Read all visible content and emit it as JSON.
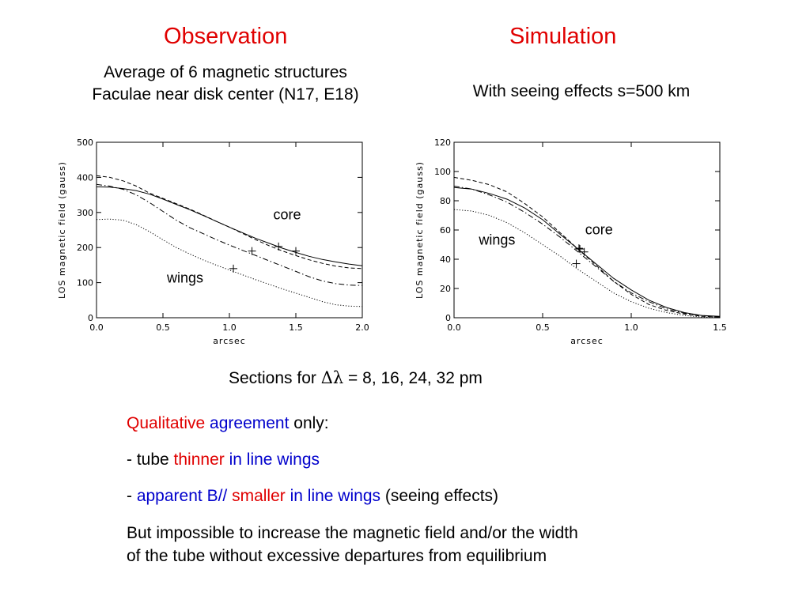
{
  "headings": {
    "observation": "Observation",
    "simulation": "Simulation"
  },
  "observation_sub": {
    "line1": "Average of 6 magnetic structures",
    "line2": "Faculae near disk center (N17, E18)"
  },
  "simulation_sub": {
    "line1": "With seeing effects s=500  km"
  },
  "sections_caption": {
    "prefix": "Sections for ",
    "symbol": "Δλ",
    "suffix": " = 8, 16, 24, 32 pm"
  },
  "bullets": {
    "b1": {
      "w1": "Qualitative",
      "w2": " agreement",
      "w3": " only:"
    },
    "b2": {
      "w1": "- tube ",
      "w2": "thinner",
      "w3": " in line wings"
    },
    "b3": {
      "w1": "- ",
      "w2": "apparent B//",
      "w3": " smaller",
      "w4": " in line wings",
      "w5": " (seeing effects)"
    },
    "b4": {
      "line1": "But impossible to increase the magnetic field and/or the width",
      "line2": "of the tube without excessive departures from equilibrium"
    }
  },
  "colors": {
    "red": "#e00000",
    "blue": "#0000cc"
  },
  "chart_data": [
    {
      "type": "line",
      "xlabel": "arcsec",
      "ylabel": "LOS magnetic field (gauss)",
      "xlim": [
        0,
        2.0
      ],
      "ylim": [
        0,
        500
      ],
      "xticks": [
        "0.0",
        "0.5",
        "1.0",
        "1.5",
        "2.0"
      ],
      "xtick_values": [
        0,
        0.5,
        1.0,
        1.5,
        2.0
      ],
      "yticks": [
        "0",
        "100",
        "200",
        "300",
        "400",
        "500"
      ],
      "ytick_values": [
        0,
        100,
        200,
        300,
        400,
        500
      ],
      "series": [
        {
          "style": "dashed",
          "x": [
            0,
            0.1,
            0.2,
            0.3,
            0.4,
            0.5,
            0.6,
            0.7,
            0.8,
            0.9,
            1.0,
            1.1,
            1.2,
            1.3,
            1.4,
            1.5,
            1.6,
            1.7,
            1.8,
            1.9,
            2.0
          ],
          "y": [
            405,
            400,
            390,
            375,
            355,
            340,
            325,
            310,
            293,
            275,
            258,
            240,
            222,
            205,
            190,
            177,
            165,
            155,
            147,
            142,
            140
          ]
        },
        {
          "style": "solid",
          "x": [
            0,
            0.1,
            0.2,
            0.3,
            0.4,
            0.5,
            0.6,
            0.7,
            0.8,
            0.9,
            1.0,
            1.1,
            1.2,
            1.3,
            1.4,
            1.5,
            1.6,
            1.7,
            1.8,
            1.9,
            2.0
          ],
          "y": [
            373,
            372,
            368,
            362,
            352,
            338,
            323,
            308,
            292,
            275,
            258,
            242,
            226,
            212,
            198,
            186,
            175,
            166,
            159,
            153,
            148
          ]
        },
        {
          "style": "dashdot",
          "x": [
            0,
            0.1,
            0.2,
            0.3,
            0.4,
            0.5,
            0.6,
            0.7,
            0.8,
            0.9,
            1.0,
            1.1,
            1.2,
            1.3,
            1.4,
            1.5,
            1.6,
            1.7,
            1.8,
            1.9,
            2.0
          ],
          "y": [
            380,
            375,
            366,
            350,
            328,
            303,
            278,
            257,
            240,
            223,
            207,
            192,
            177,
            162,
            147,
            132,
            117,
            105,
            97,
            93,
            92
          ]
        },
        {
          "style": "dotted",
          "x": [
            0,
            0.1,
            0.2,
            0.3,
            0.4,
            0.5,
            0.6,
            0.7,
            0.8,
            0.9,
            1.0,
            1.1,
            1.2,
            1.3,
            1.4,
            1.5,
            1.6,
            1.7,
            1.8,
            1.9,
            2.0
          ],
          "y": [
            280,
            281,
            278,
            265,
            245,
            222,
            200,
            182,
            165,
            150,
            136,
            122,
            108,
            95,
            82,
            70,
            58,
            46,
            37,
            33,
            32
          ]
        }
      ],
      "markers": [
        {
          "x": 1.37,
          "y": 203
        },
        {
          "x": 1.5,
          "y": 190
        },
        {
          "x": 1.17,
          "y": 190
        },
        {
          "x": 1.03,
          "y": 140
        }
      ],
      "annotations": [
        {
          "text": "core",
          "x": 1.33,
          "y": 280
        },
        {
          "text": "wings",
          "x": 0.53,
          "y": 100
        }
      ]
    },
    {
      "type": "line",
      "xlabel": "arcsec",
      "ylabel": "LOS magnetic field (gauss)",
      "xlim": [
        0,
        1.5
      ],
      "ylim": [
        0,
        120
      ],
      "xticks": [
        "0.0",
        "0.5",
        "1.0",
        "1.5"
      ],
      "xtick_values": [
        0,
        0.5,
        1.0,
        1.5
      ],
      "yticks": [
        "0",
        "20",
        "40",
        "60",
        "80",
        "100",
        "120"
      ],
      "ytick_values": [
        0,
        20,
        40,
        60,
        80,
        100,
        120
      ],
      "series": [
        {
          "style": "dashed",
          "x": [
            0,
            0.1,
            0.2,
            0.3,
            0.4,
            0.5,
            0.6,
            0.7,
            0.8,
            0.9,
            1.0,
            1.1,
            1.2,
            1.3,
            1.4,
            1.5
          ],
          "y": [
            96,
            94,
            91,
            86,
            78,
            69,
            58,
            47,
            36,
            25,
            16,
            9,
            5,
            2.5,
            1,
            0.5
          ]
        },
        {
          "style": "solid",
          "x": [
            0,
            0.1,
            0.2,
            0.3,
            0.4,
            0.5,
            0.6,
            0.7,
            0.8,
            0.9,
            1.0,
            1.1,
            1.2,
            1.3,
            1.4,
            1.5
          ],
          "y": [
            89,
            88,
            85,
            81,
            75,
            67,
            57,
            47,
            37,
            27,
            19,
            12,
            7,
            3.5,
            1.5,
            1
          ]
        },
        {
          "style": "dashdot",
          "x": [
            0,
            0.1,
            0.2,
            0.3,
            0.4,
            0.5,
            0.6,
            0.7,
            0.8,
            0.9,
            1.0,
            1.1,
            1.2,
            1.3,
            1.4,
            1.5
          ],
          "y": [
            90,
            88,
            84,
            79,
            72,
            64,
            55,
            45,
            35,
            25,
            17,
            11,
            6,
            3,
            1.5,
            0.5
          ]
        },
        {
          "style": "dotted",
          "x": [
            0,
            0.1,
            0.2,
            0.3,
            0.4,
            0.5,
            0.6,
            0.7,
            0.8,
            0.9,
            1.0,
            1.1,
            1.2,
            1.3,
            1.4,
            1.5
          ],
          "y": [
            74,
            73,
            70,
            65,
            58,
            50,
            42,
            33,
            25,
            17,
            11,
            6.5,
            3.5,
            1.5,
            0.5,
            0
          ]
        }
      ],
      "markers": [
        {
          "x": 0.71,
          "y": 47
        },
        {
          "x": 0.735,
          "y": 45
        },
        {
          "x": 0.705,
          "y": 47.5
        },
        {
          "x": 0.69,
          "y": 37
        }
      ],
      "annotations": [
        {
          "text": "core",
          "x": 0.74,
          "y": 57
        },
        {
          "text": "wings",
          "x": 0.14,
          "y": 50
        }
      ]
    }
  ]
}
